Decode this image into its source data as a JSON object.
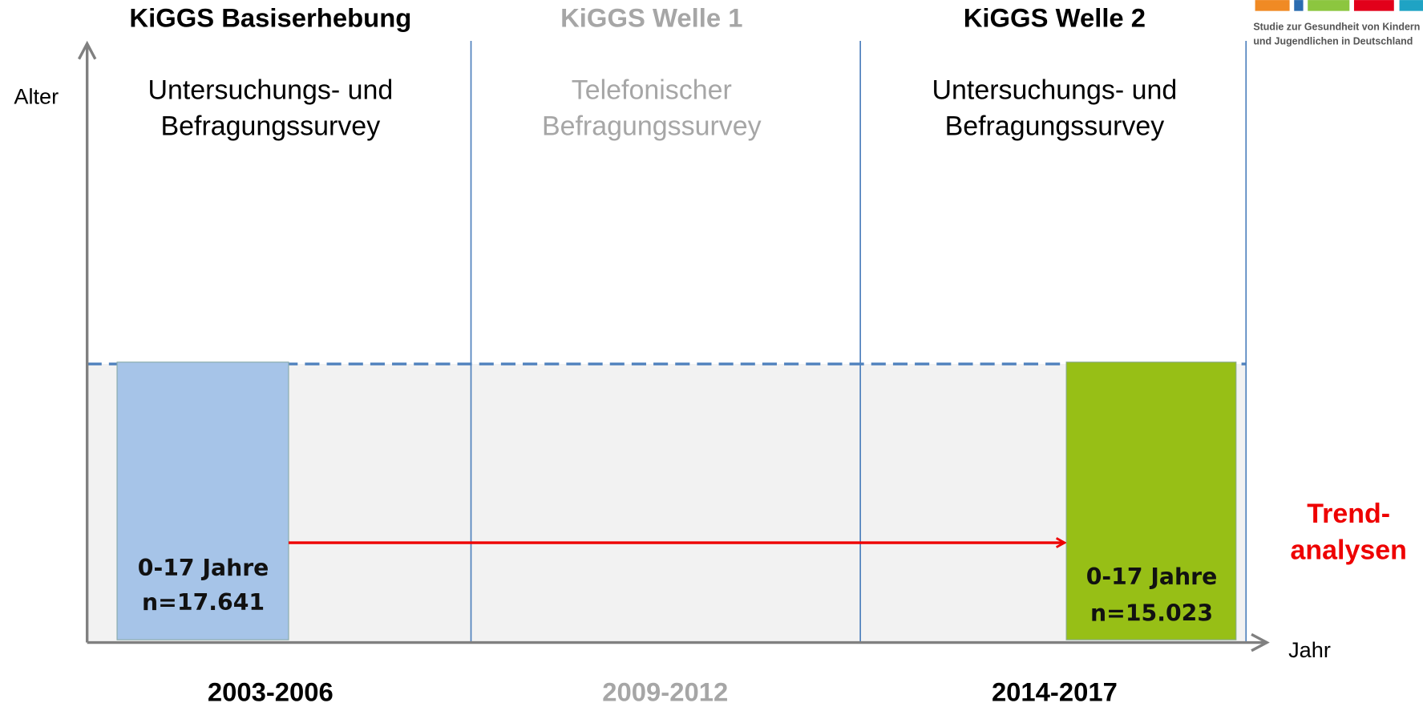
{
  "waves": [
    {
      "title": "KiGGS Basiserhebung",
      "description": [
        "Untersuchungs- und",
        "Befragungssurvey"
      ],
      "years": "2003-2006"
    },
    {
      "title": "KiGGS Welle 1",
      "description": [
        "Telefonischer",
        "Befragungssurvey"
      ],
      "years": "2009-2012"
    },
    {
      "title": "KiGGS Welle 2",
      "description": [
        "Untersuchungs- und",
        "Befragungssurvey"
      ],
      "years": "2014-2017"
    }
  ],
  "samples": [
    {
      "age": "0-17 Jahre",
      "n": "n=17.641"
    },
    {
      "age": "0-17 Jahre",
      "n": "n=15.023"
    }
  ],
  "axes": {
    "y": "Alter",
    "x": "Jahr"
  },
  "trend": [
    "Trend-",
    "analysen"
  ],
  "logo": [
    "Studie zur Gesundheit von Kindern",
    "und Jugendlichen in Deutschland"
  ]
}
